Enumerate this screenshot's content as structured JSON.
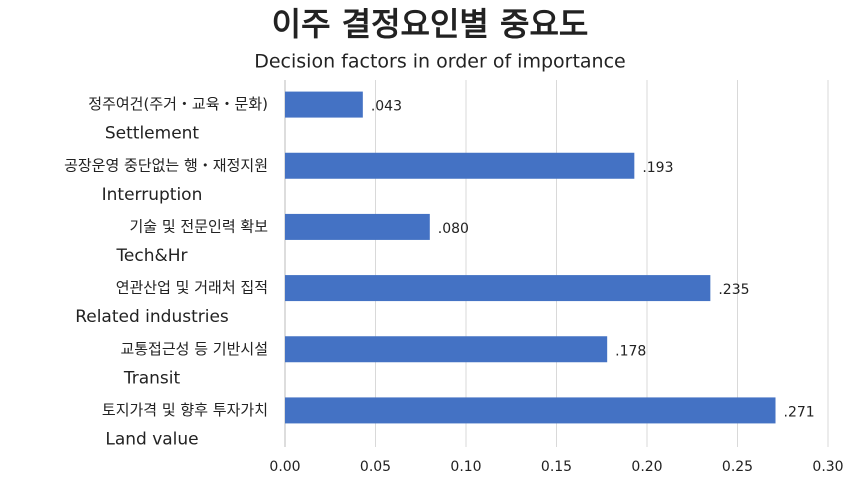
{
  "chart_data": {
    "type": "barh",
    "title": "이주 결정요인별 중요도",
    "subtitle": "Decision factors in order of importance",
    "categories": [
      "정주여건(주거・교육・문화)",
      "공장운영 중단없는 행・재정지원",
      "기술 및 전문인력 확보",
      "연관산업 및 거래처 집적",
      "교통접근성 등 기반시설",
      "토지가격 및 향후 투자가치"
    ],
    "categories_en": [
      "Settlement",
      "Interruption",
      "Tech&Hr",
      "Related industries",
      "Transit",
      "Land value"
    ],
    "values": [
      0.043,
      0.193,
      0.08,
      0.235,
      0.178,
      0.271
    ],
    "value_labels": [
      ".043",
      ".193",
      ".080",
      ".235",
      ".178",
      ".271"
    ],
    "color": "#4472c4",
    "xlim": [
      0,
      0.3
    ],
    "xticks": [
      {
        "value": 0,
        "label": "0.00"
      },
      {
        "value": 0.05,
        "label": "0.05"
      },
      {
        "value": 0.1,
        "label": "0.10"
      },
      {
        "value": 0.15,
        "label": "0.15"
      },
      {
        "value": 0.2,
        "label": "0.20"
      },
      {
        "value": 0.25,
        "label": "0.25"
      },
      {
        "value": 0.3,
        "label": "0.30"
      }
    ],
    "grid": true
  }
}
